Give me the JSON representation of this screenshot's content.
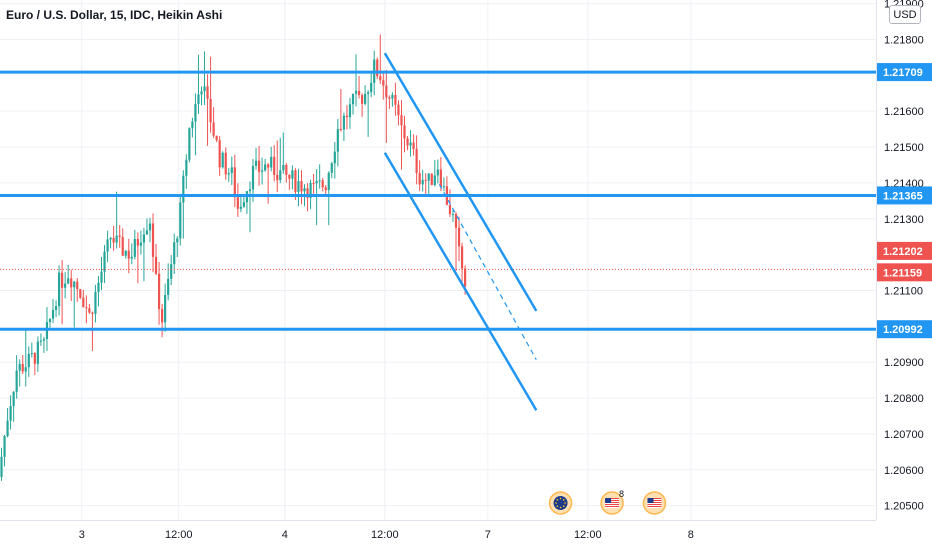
{
  "header": {
    "title": "Euro / U.S. Dollar, 15, IDC, Heikin Ashi",
    "currency": "USD"
  },
  "colors": {
    "up": "#26a69a",
    "down": "#ef5350",
    "line": "#2196f3",
    "grid": "#eef0f4",
    "axis_text": "#131722",
    "price_line": "#ef5350"
  },
  "events": [
    {
      "icon": "eu-flag-icon",
      "time_index": 185
    },
    {
      "icon": "us-flag-icon",
      "time_index": 202,
      "label": "8"
    },
    {
      "icon": "us-flag-icon",
      "time_index": 216
    }
  ],
  "chart_data": {
    "type": "candlestick",
    "title": "Euro / U.S. Dollar, 15, IDC, Heikin Ashi",
    "x_axis_labels": [
      {
        "label": "3",
        "index": 27
      },
      {
        "label": "12:00",
        "index": 59
      },
      {
        "label": "4",
        "index": 94
      },
      {
        "label": "12:00",
        "index": 127
      },
      {
        "label": "7",
        "index": 161
      },
      {
        "label": "12:00",
        "index": 194
      },
      {
        "label": "8",
        "index": 228
      }
    ],
    "y_axis_labels": [
      "1.21900",
      "1.21800",
      "1.21600",
      "1.21500",
      "1.21400",
      "1.21300",
      "1.21100",
      "1.20900",
      "1.20800",
      "1.20700",
      "1.20600",
      "1.20500"
    ],
    "ylim": [
      1.2046,
      1.2191
    ],
    "grid": true,
    "price_tags": [
      {
        "value": "1.21709",
        "kind": "level"
      },
      {
        "value": "1.21365",
        "kind": "level"
      },
      {
        "value": "1.21202",
        "kind": "price"
      },
      {
        "value": "1.21159",
        "kind": "price"
      },
      {
        "value": "1.20992",
        "kind": "level"
      }
    ],
    "last_price": 1.21159,
    "horizontal_lines": [
      1.21709,
      1.21365,
      1.20992
    ],
    "trendlines": [
      {
        "style": "solid",
        "from": {
          "i": 127,
          "y": 1.21762
        },
        "to": {
          "i": 177,
          "y": 1.21043
        }
      },
      {
        "style": "solid",
        "from": {
          "i": 127,
          "y": 1.21484
        },
        "to": {
          "i": 177,
          "y": 1.20766
        }
      },
      {
        "style": "dashed",
        "from": {
          "i": 145,
          "y": 1.21396
        },
        "to": {
          "i": 177,
          "y": 1.20907
        }
      }
    ],
    "anchors": [
      [
        0,
        1.2058
      ],
      [
        3,
        1.2075
      ],
      [
        6,
        1.2088
      ],
      [
        10,
        1.209
      ],
      [
        15,
        1.2095
      ],
      [
        20,
        1.2112
      ],
      [
        23,
        1.2115
      ],
      [
        27,
        1.211
      ],
      [
        30,
        1.2103
      ],
      [
        33,
        1.2112
      ],
      [
        37,
        1.2125
      ],
      [
        40,
        1.2122
      ],
      [
        44,
        1.212
      ],
      [
        48,
        1.2128
      ],
      [
        50,
        1.213
      ],
      [
        52,
        1.2112
      ],
      [
        54,
        1.2102
      ],
      [
        56,
        1.2112
      ],
      [
        60,
        1.2132
      ],
      [
        63,
        1.2155
      ],
      [
        67,
        1.2168
      ],
      [
        70,
        1.2158
      ],
      [
        73,
        1.2147
      ],
      [
        77,
        1.2142
      ],
      [
        79,
        1.2133
      ],
      [
        84,
        1.2143
      ],
      [
        89,
        1.2145
      ],
      [
        94,
        1.2142
      ],
      [
        99,
        1.214
      ],
      [
        104,
        1.2138
      ],
      [
        108,
        1.214
      ],
      [
        112,
        1.2155
      ],
      [
        117,
        1.2162
      ],
      [
        121,
        1.2165
      ],
      [
        124,
        1.2172
      ],
      [
        126,
        1.217
      ],
      [
        128,
        1.2166
      ],
      [
        131,
        1.216
      ],
      [
        133,
        1.2155
      ],
      [
        136,
        1.215
      ],
      [
        139,
        1.2142
      ],
      [
        142,
        1.214
      ],
      [
        145,
        1.2145
      ],
      [
        147,
        1.2138
      ],
      [
        150,
        1.213
      ],
      [
        152,
        1.212
      ],
      [
        154,
        1.2112
      ]
    ]
  }
}
